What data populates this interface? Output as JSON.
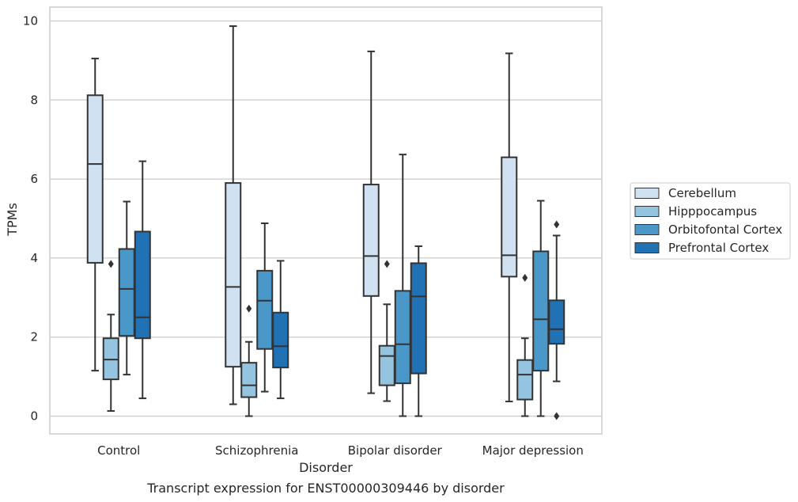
{
  "chart_data": {
    "type": "box",
    "title": "",
    "caption": "Transcript expression for ENST00000309446 by disorder",
    "xlabel": "Disorder",
    "ylabel": "TPMs",
    "ylim": [
      -0.45,
      10.35
    ],
    "yticks": [
      0,
      2,
      4,
      6,
      8,
      10
    ],
    "grid": "y",
    "legend_position": "right",
    "categories": [
      "Control",
      "Schizophrenia",
      "Bipolar disorder",
      "Major depression"
    ],
    "series": [
      {
        "name": "Cerebellum",
        "color": "#d0e1f2",
        "boxes": [
          {
            "whislo": 1.15,
            "q1": 3.88,
            "med": 6.38,
            "q3": 8.12,
            "whishi": 9.05,
            "fliers": []
          },
          {
            "whislo": 0.3,
            "q1": 1.25,
            "med": 3.27,
            "q3": 5.9,
            "whishi": 9.87,
            "fliers": []
          },
          {
            "whislo": 0.58,
            "q1": 3.04,
            "med": 4.05,
            "q3": 5.86,
            "whishi": 9.23,
            "fliers": []
          },
          {
            "whislo": 0.37,
            "q1": 3.53,
            "med": 4.07,
            "q3": 6.55,
            "whishi": 9.18,
            "fliers": []
          }
        ]
      },
      {
        "name": "Hipppocampus",
        "color": "#94c4df",
        "boxes": [
          {
            "whislo": 0.13,
            "q1": 0.93,
            "med": 1.43,
            "q3": 1.97,
            "whishi": 2.57,
            "fliers": [
              3.85
            ]
          },
          {
            "whislo": 0.0,
            "q1": 0.48,
            "med": 0.78,
            "q3": 1.35,
            "whishi": 1.88,
            "fliers": [
              2.72
            ]
          },
          {
            "whislo": 0.38,
            "q1": 0.78,
            "med": 1.52,
            "q3": 1.78,
            "whishi": 2.83,
            "fliers": [
              3.85
            ]
          },
          {
            "whislo": 0.0,
            "q1": 0.42,
            "med": 1.05,
            "q3": 1.42,
            "whishi": 1.97,
            "fliers": [
              3.5
            ]
          }
        ]
      },
      {
        "name": "Orbitofontal Cortex",
        "color": "#4a98c9",
        "boxes": [
          {
            "whislo": 1.05,
            "q1": 2.03,
            "med": 3.22,
            "q3": 4.23,
            "whishi": 5.43,
            "fliers": []
          },
          {
            "whislo": 0.62,
            "q1": 1.7,
            "med": 2.92,
            "q3": 3.68,
            "whishi": 4.88,
            "fliers": []
          },
          {
            "whislo": 0.0,
            "q1": 0.83,
            "med": 1.82,
            "q3": 3.17,
            "whishi": 6.62,
            "fliers": []
          },
          {
            "whislo": 0.0,
            "q1": 1.15,
            "med": 2.45,
            "q3": 4.17,
            "whishi": 5.45,
            "fliers": []
          }
        ]
      },
      {
        "name": "Prefrontal Cortex",
        "color": "#2171b5",
        "boxes": [
          {
            "whislo": 0.45,
            "q1": 1.97,
            "med": 2.5,
            "q3": 4.67,
            "whishi": 6.45,
            "fliers": []
          },
          {
            "whislo": 0.45,
            "q1": 1.23,
            "med": 1.77,
            "q3": 2.62,
            "whishi": 3.93,
            "fliers": []
          },
          {
            "whislo": 0.0,
            "q1": 1.08,
            "med": 3.03,
            "q3": 3.87,
            "whishi": 4.3,
            "fliers": []
          },
          {
            "whislo": 0.88,
            "q1": 1.83,
            "med": 2.2,
            "q3": 2.93,
            "whishi": 4.57,
            "fliers": [
              4.85,
              0.0
            ]
          }
        ]
      }
    ]
  }
}
